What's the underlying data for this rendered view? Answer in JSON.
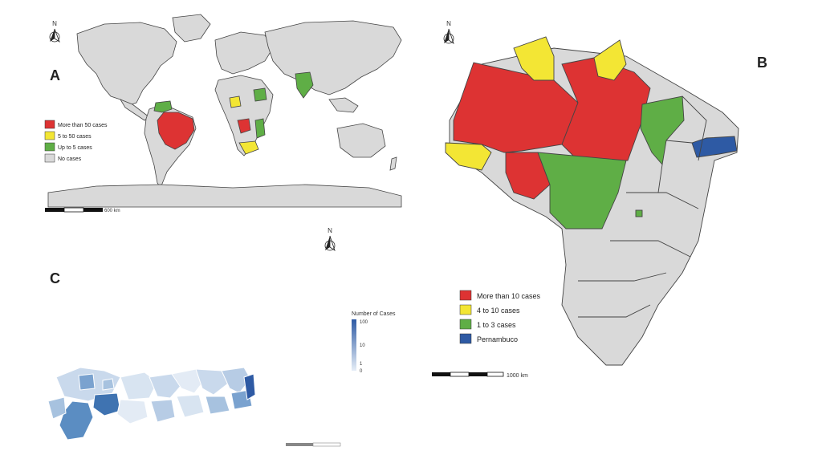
{
  "panels": {
    "a": {
      "label": "A",
      "scalebar_label": "600 km"
    },
    "b": {
      "label": "B",
      "scalebar_label": "1000 km"
    },
    "c": {
      "label": "C",
      "scalebar_label": ""
    }
  },
  "north_symbol": "N",
  "world_legend": [
    {
      "label": "More than 50 cases",
      "color": "#dd3333"
    },
    {
      "label": "5 to 50 cases",
      "color": "#f3e634"
    },
    {
      "label": "Up to 5 cases",
      "color": "#5fae46"
    },
    {
      "label": "No cases",
      "color": "#d9d9d9"
    }
  ],
  "brazil_legend": [
    {
      "label": "More than 10 cases",
      "color": "#dd3333"
    },
    {
      "label": "4 to 10 cases",
      "color": "#f3e634"
    },
    {
      "label": "1 to 3 cases",
      "color": "#5fae46"
    },
    {
      "label": "Pernambuco",
      "color": "#2e5aa4"
    }
  ],
  "colorbar": {
    "title": "Number of Cases",
    "ticks": [
      "100",
      "10",
      "1",
      "0"
    ],
    "color_high": "#2e5aa4",
    "color_low": "#e6eef7"
  },
  "colors": {
    "land": "#d9d9d9",
    "border": "#444444"
  }
}
